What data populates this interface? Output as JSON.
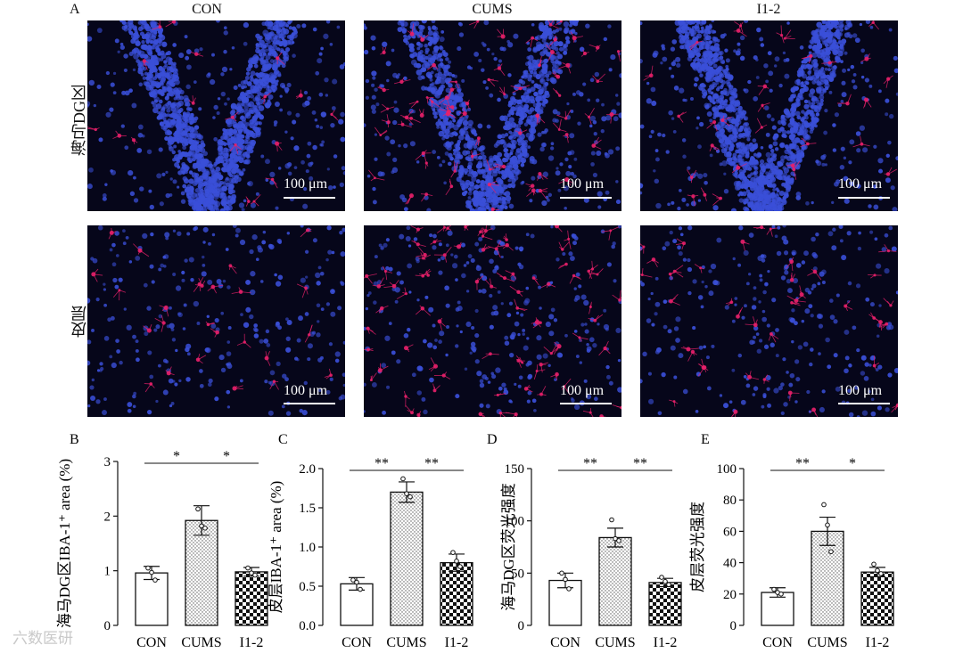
{
  "figure": {
    "panel_a_letter": "A",
    "columns": [
      "CON",
      "CUMS",
      "I1-2"
    ],
    "rows": [
      "海马DG区",
      "皮层"
    ],
    "scale_bar_label": "100 μm",
    "watermark": "六数医研"
  },
  "colors": {
    "nuclei": "#3a4fd8",
    "microglia": "#e8206a",
    "tissue_background": "#06061a"
  },
  "chart_data": [
    {
      "type": "bar",
      "panel": "B",
      "categories": [
        "CON",
        "CUMS",
        "I1-2"
      ],
      "values": [
        0.96,
        1.92,
        0.98
      ],
      "errors": [
        0.12,
        0.27,
        0.08
      ],
      "points": [
        [
          1.05,
          0.97,
          0.83
        ],
        [
          2.13,
          1.82,
          1.78
        ],
        [
          1.05,
          0.96,
          0.92
        ]
      ],
      "ylabel": "海马DG区IBA-1⁺ area (%)",
      "ylim": [
        0,
        3
      ],
      "yticks": [
        0,
        1,
        2,
        3
      ],
      "significance": [
        {
          "from": 0,
          "to": 1,
          "label": "*"
        },
        {
          "from": 1,
          "to": 2,
          "label": "*"
        }
      ],
      "patterns": [
        "solid",
        "dots",
        "checker"
      ]
    },
    {
      "type": "bar",
      "panel": "C",
      "categories": [
        "CON",
        "CUMS",
        "I1-2"
      ],
      "values": [
        0.53,
        1.7,
        0.8
      ],
      "errors": [
        0.08,
        0.13,
        0.11
      ],
      "points": [
        [
          0.58,
          0.55,
          0.46
        ],
        [
          1.87,
          1.68,
          1.64
        ],
        [
          0.93,
          0.82,
          0.75
        ]
      ],
      "ylabel": "皮层IBA-1⁺ area (%)",
      "ylim": [
        0,
        2.0
      ],
      "yticks": [
        0,
        0.5,
        1.0,
        1.5,
        2.0
      ],
      "significance": [
        {
          "from": 0,
          "to": 1,
          "label": "**"
        },
        {
          "from": 1,
          "to": 2,
          "label": "**"
        }
      ],
      "patterns": [
        "solid",
        "dots",
        "checker"
      ]
    },
    {
      "type": "bar",
      "panel": "D",
      "categories": [
        "CON",
        "CUMS",
        "I1-2"
      ],
      "values": [
        43,
        84,
        41
      ],
      "errors": [
        7,
        9,
        4
      ],
      "points": [
        [
          50,
          44,
          35
        ],
        [
          101,
          83,
          81
        ],
        [
          46,
          42,
          39
        ]
      ],
      "ylabel": "海马DG区荧光强度",
      "ylim": [
        0,
        150
      ],
      "yticks": [
        0,
        50,
        100,
        150
      ],
      "significance": [
        {
          "from": 0,
          "to": 1,
          "label": "**"
        },
        {
          "from": 1,
          "to": 2,
          "label": "**"
        }
      ],
      "patterns": [
        "solid",
        "dots",
        "checker"
      ]
    },
    {
      "type": "bar",
      "panel": "E",
      "categories": [
        "CON",
        "CUMS",
        "I1-2"
      ],
      "values": [
        21,
        60,
        34
      ],
      "errors": [
        3,
        9,
        3
      ],
      "points": [
        [
          23,
          21,
          20
        ],
        [
          77,
          64,
          47
        ],
        [
          39,
          35,
          33
        ]
      ],
      "ylabel": "皮层荧光强度",
      "ylim": [
        0,
        100
      ],
      "yticks": [
        0,
        20,
        40,
        60,
        80,
        100
      ],
      "significance": [
        {
          "from": 0,
          "to": 1,
          "label": "**"
        },
        {
          "from": 1,
          "to": 2,
          "label": "*"
        }
      ],
      "patterns": [
        "solid",
        "dots",
        "checker"
      ]
    }
  ]
}
